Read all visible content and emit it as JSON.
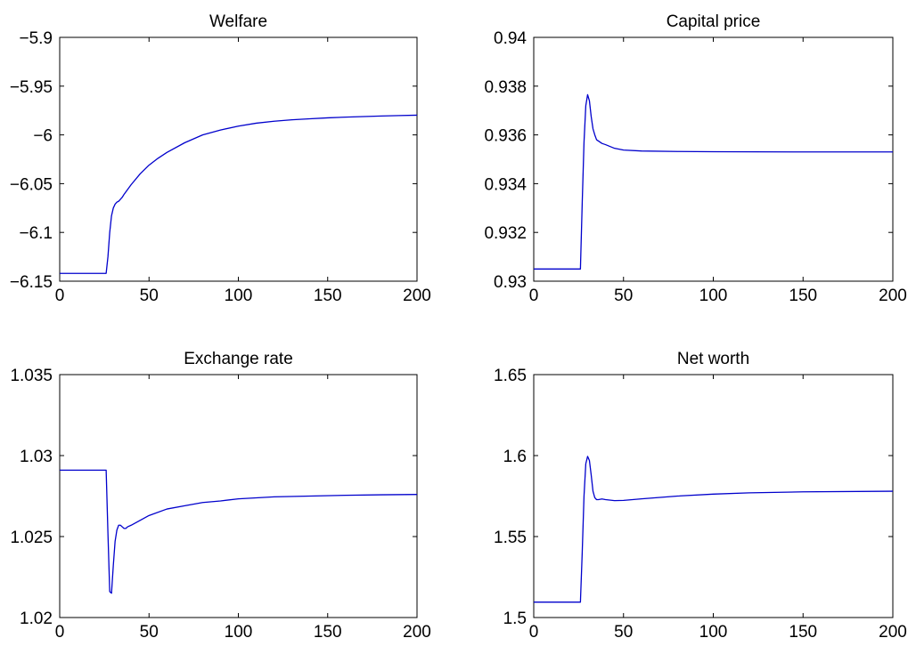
{
  "chart_data": [
    {
      "type": "line",
      "title": "Welfare",
      "xlabel": "",
      "ylabel": "",
      "xlim": [
        0,
        200
      ],
      "ylim": [
        -6.15,
        -5.9
      ],
      "xticks": [
        0,
        50,
        100,
        150,
        200
      ],
      "xtick_labels": [
        "0",
        "50",
        "100",
        "150",
        "200"
      ],
      "yticks": [
        -6.15,
        -6.1,
        -6.05,
        -6,
        -5.95,
        -5.9
      ],
      "ytick_labels": [
        "−6.15",
        "−6.1",
        "−6.05",
        "−6",
        "−5.95",
        "−5.9"
      ],
      "grid": false,
      "series": [
        {
          "color": "#0000cc",
          "x": [
            0,
            26,
            27,
            28,
            29,
            30,
            31,
            32,
            33,
            34,
            35,
            36,
            38,
            40,
            45,
            50,
            55,
            60,
            70,
            80,
            90,
            100,
            110,
            120,
            130,
            140,
            150,
            160,
            170,
            180,
            190,
            200
          ],
          "values": [
            -6.142,
            -6.142,
            -6.125,
            -6.1,
            -6.083,
            -6.075,
            -6.071,
            -6.069,
            -6.068,
            -6.066,
            -6.064,
            -6.061,
            -6.056,
            -6.051,
            -6.04,
            -6.031,
            -6.024,
            -6.018,
            -6.008,
            -6.0,
            -5.995,
            -5.991,
            -5.988,
            -5.986,
            -5.9845,
            -5.9835,
            -5.9825,
            -5.9818,
            -5.9812,
            -5.9806,
            -5.9802,
            -5.9798
          ]
        }
      ]
    },
    {
      "type": "line",
      "title": "Capital price",
      "xlabel": "",
      "ylabel": "",
      "xlim": [
        0,
        200
      ],
      "ylim": [
        0.93,
        0.94
      ],
      "xticks": [
        0,
        50,
        100,
        150,
        200
      ],
      "xtick_labels": [
        "0",
        "50",
        "100",
        "150",
        "200"
      ],
      "yticks": [
        0.93,
        0.932,
        0.934,
        0.936,
        0.938,
        0.94
      ],
      "ytick_labels": [
        "0.93",
        "0.932",
        "0.934",
        "0.936",
        "0.938",
        "0.94"
      ],
      "grid": false,
      "series": [
        {
          "color": "#0000cc",
          "x": [
            0,
            26,
            27,
            28,
            29,
            30,
            31,
            32,
            33,
            34,
            35,
            36,
            38,
            40,
            45,
            50,
            60,
            80,
            100,
            150,
            200
          ],
          "values": [
            0.9305,
            0.9305,
            0.9332,
            0.9357,
            0.9372,
            0.93765,
            0.9374,
            0.93675,
            0.93625,
            0.936,
            0.9358,
            0.93575,
            0.93565,
            0.9356,
            0.93545,
            0.93538,
            0.93534,
            0.93532,
            0.93531,
            0.9353,
            0.9353
          ]
        }
      ]
    },
    {
      "type": "line",
      "title": "Exchange rate",
      "xlabel": "",
      "ylabel": "",
      "xlim": [
        0,
        200
      ],
      "ylim": [
        1.02,
        1.035
      ],
      "xticks": [
        0,
        50,
        100,
        150,
        200
      ],
      "xtick_labels": [
        "0",
        "50",
        "100",
        "150",
        "200"
      ],
      "yticks": [
        1.02,
        1.025,
        1.03,
        1.035
      ],
      "ytick_labels": [
        "1.02",
        "1.025",
        "1.03",
        "1.035"
      ],
      "grid": false,
      "series": [
        {
          "color": "#0000cc",
          "x": [
            0,
            26,
            27,
            28,
            29,
            30,
            31,
            32,
            33,
            34,
            35,
            36,
            37,
            38,
            40,
            45,
            50,
            60,
            70,
            80,
            90,
            100,
            120,
            140,
            160,
            180,
            200
          ],
          "values": [
            1.0291,
            1.0291,
            1.0252,
            1.0216,
            1.0215,
            1.0232,
            1.0247,
            1.0254,
            1.0257,
            1.0257,
            1.0256,
            1.0255,
            1.0255,
            1.0256,
            1.0257,
            1.026,
            1.0263,
            1.0267,
            1.0269,
            1.0271,
            1.0272,
            1.02733,
            1.02745,
            1.0275,
            1.02755,
            1.02758,
            1.0276
          ]
        }
      ]
    },
    {
      "type": "line",
      "title": "Net worth",
      "xlabel": "",
      "ylabel": "",
      "xlim": [
        0,
        200
      ],
      "ylim": [
        1.5,
        1.65
      ],
      "xticks": [
        0,
        50,
        100,
        150,
        200
      ],
      "xtick_labels": [
        "0",
        "50",
        "100",
        "150",
        "200"
      ],
      "yticks": [
        1.5,
        1.55,
        1.6,
        1.65
      ],
      "ytick_labels": [
        "1.5",
        "1.55",
        "1.6",
        "1.65"
      ],
      "grid": false,
      "series": [
        {
          "color": "#0000cc",
          "x": [
            0,
            26,
            27,
            28,
            29,
            30,
            31,
            32,
            33,
            34,
            35,
            36,
            38,
            40,
            45,
            50,
            60,
            80,
            100,
            120,
            150,
            200
          ],
          "values": [
            1.5095,
            1.5095,
            1.54,
            1.575,
            1.595,
            1.5995,
            1.597,
            1.588,
            1.578,
            1.574,
            1.5728,
            1.5728,
            1.5732,
            1.5728,
            1.5722,
            1.5723,
            1.5733,
            1.575,
            1.5762,
            1.577,
            1.5776,
            1.578
          ]
        }
      ]
    }
  ]
}
